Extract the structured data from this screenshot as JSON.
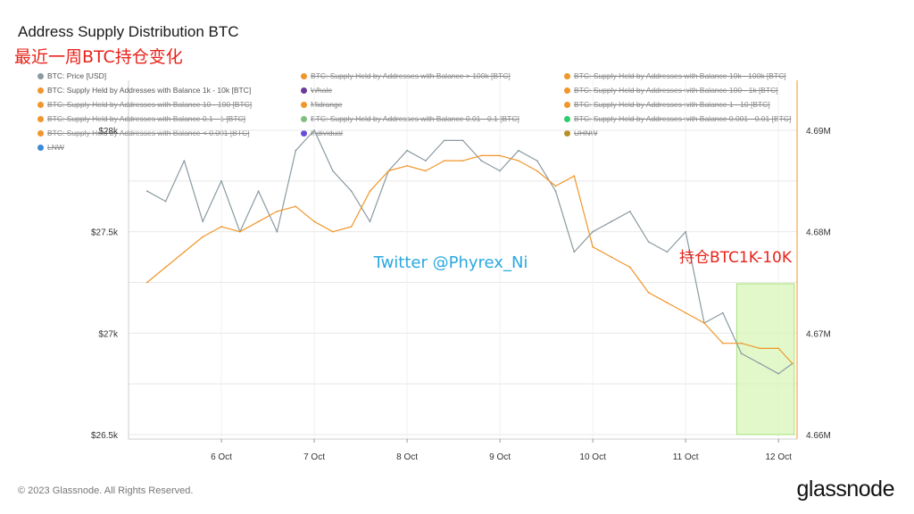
{
  "title": "Address Supply Distribution BTC",
  "subtitle": "最近一周BTC持仓变化",
  "watermark": "Twitter @Phyrex_Ni",
  "annotation": "持仓BTC1K-10K",
  "footer": "© 2023 Glassnode. All Rights Reserved.",
  "logo": "glassnode",
  "legend": [
    {
      "label": "BTC: Price [USD]",
      "color": "#8a9aa0",
      "active": true
    },
    {
      "label": "BTC: Supply Held by Addresses with Balance > 100k [BTC]",
      "color": "#f0962a",
      "active": false
    },
    {
      "label": "BTC: Supply Held by Addresses with Balance 10k - 100k [BTC]",
      "color": "#f0962a",
      "active": false
    },
    {
      "label": "BTC: Supply Held by Addresses with Balance 1k - 10k [BTC]",
      "color": "#f0962a",
      "active": true
    },
    {
      "label": "Whale",
      "color": "#6a3a9a",
      "active": false
    },
    {
      "label": "BTC: Supply Held by Addresses with Balance 100 - 1k [BTC]",
      "color": "#f0962a",
      "active": false
    },
    {
      "label": "BTC: Supply Held by Addresses with Balance 10 - 100 [BTC]",
      "color": "#f0962a",
      "active": false
    },
    {
      "label": "Midrange",
      "color": "#f0962a",
      "active": false
    },
    {
      "label": "BTC: Supply Held by Addresses with Balance 1 - 10 [BTC]",
      "color": "#f0962a",
      "active": false
    },
    {
      "label": "BTC: Supply Held by Addresses with Balance 0.1 - 1 [BTC]",
      "color": "#f0962a",
      "active": false
    },
    {
      "label": "BTC: Supply Held by Addresses with Balance 0.01 - 0.1 [BTC]",
      "color": "#7fbf7f",
      "active": false
    },
    {
      "label": "BTC: Supply Held by Addresses with Balance 0.001 - 0.01 [BTC]",
      "color": "#2ecc71",
      "active": false
    },
    {
      "label": "BTC: Supply Held by Addresses with Balance < 0.001 [BTC]",
      "color": "#f0962a",
      "active": false
    },
    {
      "label": "Individual",
      "color": "#6a4ad8",
      "active": false
    },
    {
      "label": "UHNW",
      "color": "#b8902a",
      "active": false
    },
    {
      "label": "LNW",
      "color": "#3a8ad8",
      "active": false
    }
  ],
  "chart_data": {
    "type": "line",
    "x_ticks": [
      "6 Oct",
      "7 Oct",
      "8 Oct",
      "9 Oct",
      "10 Oct",
      "11 Oct",
      "12 Oct"
    ],
    "y_left_ticks": [
      "$28k",
      "$27.5k",
      "$27k",
      "$26.5k"
    ],
    "y_right_ticks": [
      "4.69M",
      "4.68M",
      "4.67M",
      "4.66M"
    ],
    "y_left_range": [
      26500,
      28000
    ],
    "y_right_range": [
      4660000,
      4690000
    ],
    "series": [
      {
        "name": "BTC: Price [USD]",
        "axis": "left",
        "color": "#8a9aa0",
        "x": [
          5.2,
          5.4,
          5.6,
          5.8,
          6.0,
          6.2,
          6.4,
          6.6,
          6.8,
          7.0,
          7.2,
          7.4,
          7.6,
          7.8,
          8.0,
          8.2,
          8.4,
          8.6,
          8.8,
          9.0,
          9.2,
          9.4,
          9.6,
          9.8,
          10.0,
          10.2,
          10.4,
          10.6,
          10.8,
          11.0,
          11.2,
          11.4,
          11.6,
          11.8,
          12.0,
          12.15
        ],
        "y": [
          27700,
          27650,
          27850,
          27550,
          27750,
          27500,
          27700,
          27500,
          27900,
          28000,
          27800,
          27700,
          27550,
          27800,
          27900,
          27850,
          27950,
          27950,
          27850,
          27800,
          27900,
          27850,
          27700,
          27400,
          27500,
          27550,
          27600,
          27450,
          27400,
          27500,
          27050,
          27100,
          26900,
          26850,
          26800,
          26850
        ]
      },
      {
        "name": "BTC: Supply Held by Addresses with Balance 1k - 10k [BTC]",
        "axis": "right",
        "color": "#f0962a",
        "x": [
          5.2,
          5.4,
          5.6,
          5.8,
          6.0,
          6.2,
          6.4,
          6.6,
          6.8,
          7.0,
          7.2,
          7.4,
          7.6,
          7.8,
          8.0,
          8.2,
          8.4,
          8.6,
          8.8,
          9.0,
          9.2,
          9.4,
          9.6,
          9.8,
          10.0,
          10.2,
          10.4,
          10.6,
          10.8,
          11.0,
          11.2,
          11.4,
          11.6,
          11.8,
          12.0,
          12.15
        ],
        "y": [
          4675000,
          4676500,
          4678000,
          4679500,
          4680500,
          4680000,
          4681000,
          4682000,
          4682500,
          4681000,
          4680000,
          4680500,
          4684000,
          4686000,
          4686500,
          4686000,
          4687000,
          4687000,
          4687500,
          4687500,
          4687000,
          4686000,
          4684500,
          4685500,
          4678500,
          4677500,
          4676500,
          4674000,
          4673000,
          4672000,
          4671000,
          4669000,
          4669000,
          4668500,
          4668500,
          4667000
        ]
      }
    ]
  }
}
